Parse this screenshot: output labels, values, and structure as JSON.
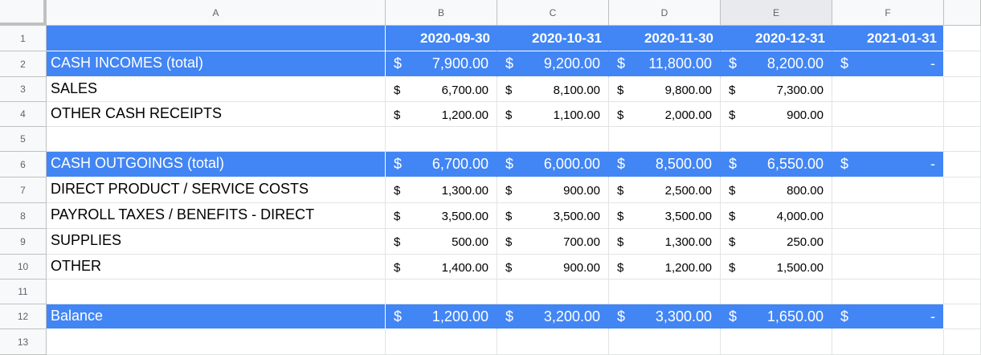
{
  "column_headers": [
    "A",
    "B",
    "C",
    "D",
    "E",
    "F"
  ],
  "row_numbers": [
    "1",
    "2",
    "3",
    "4",
    "5",
    "6",
    "7",
    "8",
    "9",
    "10",
    "11",
    "12",
    "13"
  ],
  "dates": [
    "2020-09-30",
    "2020-10-31",
    "2020-11-30",
    "2020-12-31",
    "2021-01-31"
  ],
  "currency": "$",
  "rows": {
    "r2": {
      "label": "CASH INCOMES (total)",
      "values": [
        "7,900.00",
        "9,200.00",
        "11,800.00",
        "8,200.00",
        "-"
      ]
    },
    "r3": {
      "label": "SALES",
      "values": [
        "6,700.00",
        "8,100.00",
        "9,800.00",
        "7,300.00"
      ]
    },
    "r4": {
      "label": "OTHER CASH RECEIPTS",
      "values": [
        "1,200.00",
        "1,100.00",
        "2,000.00",
        "900.00"
      ]
    },
    "r6": {
      "label": "CASH OUTGOINGS (total)",
      "values": [
        "6,700.00",
        "6,000.00",
        "8,500.00",
        "6,550.00",
        "-"
      ]
    },
    "r7": {
      "label": "DIRECT PRODUCT / SERVICE COSTS",
      "values": [
        "1,300.00",
        "900.00",
        "2,500.00",
        "800.00"
      ]
    },
    "r8": {
      "label": "PAYROLL TAXES / BENEFITS - DIRECT",
      "values": [
        "3,500.00",
        "3,500.00",
        "3,500.00",
        "4,000.00"
      ]
    },
    "r9": {
      "label": "SUPPLIES",
      "values": [
        "500.00",
        "700.00",
        "1,300.00",
        "250.00"
      ]
    },
    "r10": {
      "label": "OTHER",
      "values": [
        "1,400.00",
        "900.00",
        "1,200.00",
        "1,500.00"
      ]
    },
    "r12": {
      "label": "Balance",
      "values": [
        "1,200.00",
        "3,200.00",
        "3,300.00",
        "1,650.00",
        "-"
      ]
    }
  },
  "colors": {
    "header_fill": "#4285f4",
    "header_text": "#ffffff",
    "gridline": "#e2e3e3",
    "selected_column_header": "#e8eaed"
  }
}
